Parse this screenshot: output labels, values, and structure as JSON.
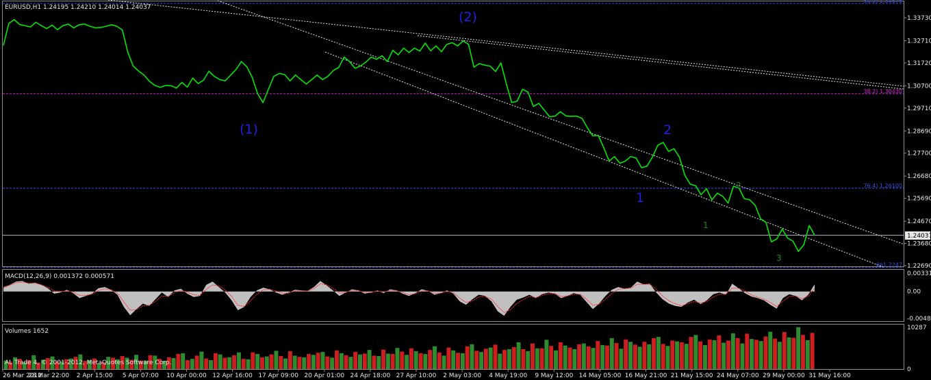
{
  "chart_data": [
    {
      "type": "line",
      "pane": "price",
      "symbol_header": "EURUSD,H1  1.24195 1.24210 1.24014 1.24037",
      "y_ticks": [
        "1.33730",
        "1.32710",
        "1.31720",
        "1.30700",
        "1.29710",
        "1.28690",
        "1.27700",
        "1.26680",
        "1.25690",
        "1.24670",
        "1.23680",
        "1.22690"
      ],
      "ylim": [
        1.2269,
        1.3437
      ],
      "current_price": "1.24037",
      "x_ticks": [
        "26 Mar 2012",
        "28 Mar 22:00",
        "2 Apr 15:00",
        "5 Apr 07:00",
        "10 Apr 00:00",
        "12 Apr 16:00",
        "17 Apr 09:00",
        "20 Apr 01:00",
        "24 Apr 18:00",
        "27 Apr 10:00",
        "2 May 03:00",
        "4 May 19:00",
        "9 May 12:00",
        "14 May 05:00",
        "16 May 21:00",
        "21 May 15:00",
        "24 May 07:00",
        "29 May 00:00",
        "31 May 16:00"
      ],
      "series": [
        {
          "color": "#00e600",
          "values": [
            1.325,
            1.3348,
            1.3365,
            1.3343,
            1.3338,
            1.3332,
            1.3353,
            1.3338,
            1.3325,
            1.334,
            1.332,
            1.3338,
            1.3345,
            1.3328,
            1.3342,
            1.3345,
            1.3335,
            1.3328,
            1.333,
            1.3335,
            1.3342,
            1.3335,
            1.3318,
            1.322,
            1.3158,
            1.3136,
            1.3118,
            1.309,
            1.3072,
            1.3063,
            1.3072,
            1.307,
            1.306,
            1.3085,
            1.3064,
            1.3105,
            1.308,
            1.3095,
            1.3135,
            1.3112,
            1.3098,
            1.3092,
            1.3117,
            1.3142,
            1.3178,
            1.3155,
            1.3108,
            1.3035,
            1.2995,
            1.3055,
            1.3112,
            1.3125,
            1.312,
            1.3092,
            1.3118,
            1.3098,
            1.3078,
            1.3098,
            1.3118,
            1.3098,
            1.3112,
            1.3138,
            1.3152,
            1.3198,
            1.3178,
            1.3148,
            1.3158,
            1.3175,
            1.3198,
            1.3188,
            1.3204,
            1.3178,
            1.3228,
            1.3208,
            1.3238,
            1.3218,
            1.3238,
            1.3225,
            1.326,
            1.3226,
            1.3248,
            1.3222,
            1.3255,
            1.3262,
            1.3248,
            1.327,
            1.3255,
            1.3153,
            1.3169,
            1.3162,
            1.3158,
            1.3134,
            1.3172,
            1.3078,
            1.2995,
            1.3002,
            1.3055,
            1.3042,
            1.2978,
            1.2992,
            1.2962,
            1.2932,
            1.2935,
            1.2955,
            1.2936,
            1.2934,
            1.2935,
            1.2925,
            1.2882,
            1.2847,
            1.2849,
            1.2795,
            1.2735,
            1.2755,
            1.2725,
            1.2735,
            1.2755,
            1.2748,
            1.2705,
            1.2712,
            1.2752,
            1.2805,
            1.2818,
            1.2778,
            1.279,
            1.2752,
            1.2672,
            1.2632,
            1.2625,
            1.2585,
            1.2612,
            1.2562,
            1.2592,
            1.2578,
            1.2548,
            1.2623,
            1.2615,
            1.2568,
            1.2562,
            1.2538,
            1.2478,
            1.2462,
            1.2375,
            1.2388,
            1.2432,
            1.2392,
            1.2378,
            1.2332,
            1.2362,
            1.2448,
            1.2404
          ]
        }
      ],
      "wave_labels_blue": [
        "(2)",
        "(1)",
        "2",
        "1"
      ],
      "wave_labels_green": [
        "2",
        "1",
        "3"
      ],
      "levels": [
        {
          "label": "50.0) 1.34576",
          "value": 1.3437,
          "color": "#3050e0"
        },
        {
          "label": "38.2) 1.30430",
          "value": 1.3035,
          "color": "#d020d0"
        },
        {
          "label": "76.4) 1.26100",
          "value": 1.2614,
          "color": "#3050e0"
        },
        {
          "label": "061.7247",
          "value": 1.2261,
          "color": "#3050e0"
        }
      ]
    },
    {
      "type": "area",
      "pane": "macd",
      "header": "MACD(12,26,9) 0.001372 0.000571",
      "y_ticks": [
        "0.00331",
        "0.00",
        "-0.00487"
      ],
      "ylim": [
        -0.00487,
        0.00331
      ],
      "series": [
        {
          "name": "MACD",
          "color": "#c0c0c0",
          "values": [
            0.0008,
            0.0012,
            0.0018,
            0.0019,
            0.0014,
            0.0016,
            0.0012,
            0.0006,
            -0.0004,
            -0.0002,
            0.0003,
            -0.0003,
            -0.0012,
            -0.0008,
            -0.0004,
            0.0006,
            0.0008,
            0.0003,
            -0.0006,
            -0.0028,
            -0.0043,
            -0.0032,
            -0.0022,
            -0.0026,
            -0.0014,
            -0.0002,
            -0.001,
            0.0002,
            0.0005,
            -0.0004,
            -0.001,
            -0.0008,
            0.0012,
            0.0018,
            0.0008,
            -0.0002,
            -0.0016,
            -0.0034,
            -0.0028,
            -0.001,
            0.0002,
            0.0007,
            0.0004,
            -0.0002,
            -0.0006,
            -0.0002,
            0.0003,
            0.0002,
            0.0001,
            0.0008,
            0.0019,
            0.0011,
            0.0002,
            -0.0008,
            -0.0002,
            0.0004,
            0.0002,
            -0.0004,
            -0.0002,
            0.0002,
            -0.0003,
            0.0004,
            0.0002,
            -0.0004,
            -0.0008,
            -0.0003,
            0.0004,
            0.0001,
            -0.0006,
            -0.0003,
            0.0002,
            -0.0004,
            -0.0018,
            -0.0024,
            -0.0014,
            -0.0006,
            -0.0008,
            -0.0018,
            -0.0036,
            -0.0044,
            -0.0028,
            -0.0015,
            -0.0011,
            -0.0006,
            -0.0012,
            -0.0005,
            -0.0002,
            -0.0004,
            -0.0012,
            -0.0008,
            -0.0003,
            -0.0006,
            -0.0019,
            -0.0032,
            -0.0022,
            -0.0008,
            0.0003,
            0.0008,
            0.0005,
            0.0007,
            0.0018,
            0.0013,
            0.0014,
            -0.0002,
            -0.0014,
            -0.0022,
            -0.0026,
            -0.0028,
            -0.002,
            -0.0015,
            -0.0023,
            -0.0016,
            -0.0005,
            -0.0002,
            -0.0006,
            0.0014,
            0.0006,
            -0.0003,
            -0.0009,
            -0.0012,
            -0.0016,
            -0.0024,
            -0.0031,
            -0.0012,
            -0.0005,
            -0.0008,
            -0.0016,
            -0.0006,
            0.0013
          ]
        },
        {
          "name": "Signal",
          "color": "#ff2a2a",
          "values": [
            0.0007,
            0.0011,
            0.0016,
            0.0017,
            0.0015,
            0.0015,
            0.0012,
            0.0008,
            0.0001,
            0.0,
            0.0001,
            -0.0001,
            -0.0007,
            -0.0007,
            -0.0005,
            0.0002,
            0.0005,
            0.0003,
            -0.0003,
            -0.0019,
            -0.0034,
            -0.0033,
            -0.0026,
            -0.0025,
            -0.0018,
            -0.0008,
            -0.0009,
            -0.0002,
            0.0002,
            -0.0001,
            -0.0006,
            -0.0007,
            0.0004,
            0.0012,
            0.001,
            0.0003,
            -0.0009,
            -0.0025,
            -0.0027,
            -0.0017,
            -0.0005,
            0.0003,
            0.0004,
            0.0001,
            -0.0003,
            -0.0003,
            0.0001,
            0.0001,
            0.0001,
            0.0005,
            0.0014,
            0.0012,
            0.0006,
            -0.0003,
            -0.0002,
            0.0002,
            0.0002,
            -0.0002,
            -0.0002,
            0.0001,
            -0.0001,
            0.0002,
            0.0002,
            -0.0002,
            -0.0006,
            -0.0004,
            0.0001,
            0.0001,
            -0.0003,
            -0.0003,
            0.0,
            -0.0002,
            -0.0012,
            -0.002,
            -0.0017,
            -0.001,
            -0.0009,
            -0.0014,
            -0.0027,
            -0.0038,
            -0.0033,
            -0.0022,
            -0.0015,
            -0.0009,
            -0.0011,
            -0.0007,
            -0.0004,
            -0.0004,
            -0.0009,
            -0.0008,
            -0.0005,
            -0.0005,
            -0.0014,
            -0.0025,
            -0.0023,
            -0.0014,
            -0.0004,
            0.0004,
            0.0005,
            0.0006,
            0.0013,
            0.0013,
            0.0013,
            0.0004,
            -0.0008,
            -0.0017,
            -0.0022,
            -0.0026,
            -0.0022,
            -0.0018,
            -0.0021,
            -0.0018,
            -0.001,
            -0.0005,
            -0.0005,
            0.0006,
            0.0006,
            0.0001,
            -0.0006,
            -0.001,
            -0.0014,
            -0.002,
            -0.0027,
            -0.0018,
            -0.0009,
            -0.0008,
            -0.0013,
            -0.0009,
            0.0006
          ]
        }
      ]
    },
    {
      "type": "bar",
      "pane": "volumes",
      "header": "Volumes 1652",
      "y_ticks": [
        "10287",
        "0"
      ],
      "ylim": [
        0,
        10287
      ],
      "series": [
        {
          "name": "up",
          "color": "#2e8b2e",
          "values": [
            2100,
            2900,
            1700,
            3400,
            2300,
            3100,
            1900,
            2600,
            3600,
            2200,
            1400,
            3000,
            2400,
            2800,
            3500,
            2100,
            3300,
            2000,
            2700,
            3900,
            2500,
            4300,
            2200,
            3600,
            2900,
            4100,
            2400,
            3700,
            3100,
            4500,
            2600,
            3300,
            2900,
            3500,
            4200,
            2800,
            3900,
            3000,
            3600,
            4700,
            3200,
            3800,
            5200,
            3500,
            4400,
            3700,
            5600,
            3300,
            4600,
            3900,
            6100,
            4200,
            5300,
            3800,
            4900,
            6600,
            4400,
            5100,
            7200,
            4600,
            5800,
            4900,
            6300,
            5200,
            5900,
            7600,
            5000,
            6700,
            5500,
            6100,
            7900,
            5700,
            6800,
            6200,
            8400,
            5900,
            7100,
            6500,
            8800,
            6300,
            7400,
            6900,
            9200,
            6700,
            7800,
            10287,
            7100
          ]
        },
        {
          "name": "down",
          "color": "#cc1f1f",
          "values": [
            1800,
            2500,
            2200,
            1600,
            2700,
            1900,
            2400,
            3000,
            2000,
            2600,
            1700,
            2800,
            3200,
            2300,
            2100,
            3400,
            2500,
            2900,
            3700,
            2200,
            3300,
            2600,
            3900,
            2800,
            3400,
            2500,
            4100,
            2900,
            3600,
            3200,
            4400,
            3000,
            3700,
            4000,
            3100,
            4600,
            3400,
            4200,
            3800,
            3300,
            4800,
            3700,
            4300,
            5100,
            3900,
            4700,
            4100,
            5300,
            4000,
            5600,
            4500,
            5000,
            6000,
            4700,
            5400,
            4900,
            6300,
            5100,
            5700,
            6600,
            5300,
            6100,
            5600,
            6900,
            5800,
            6400,
            7300,
            6000,
            6700,
            7600,
            6200,
            7000,
            6600,
            7900,
            6800,
            7300,
            8300,
            7000,
            7600,
            8700,
            7200,
            8000,
            7500,
            9100,
            7700,
            8400,
            8900
          ]
        }
      ]
    }
  ],
  "footer_text": "AL Trade 4, © 2001-2012, MetaQuotes Software Corp."
}
